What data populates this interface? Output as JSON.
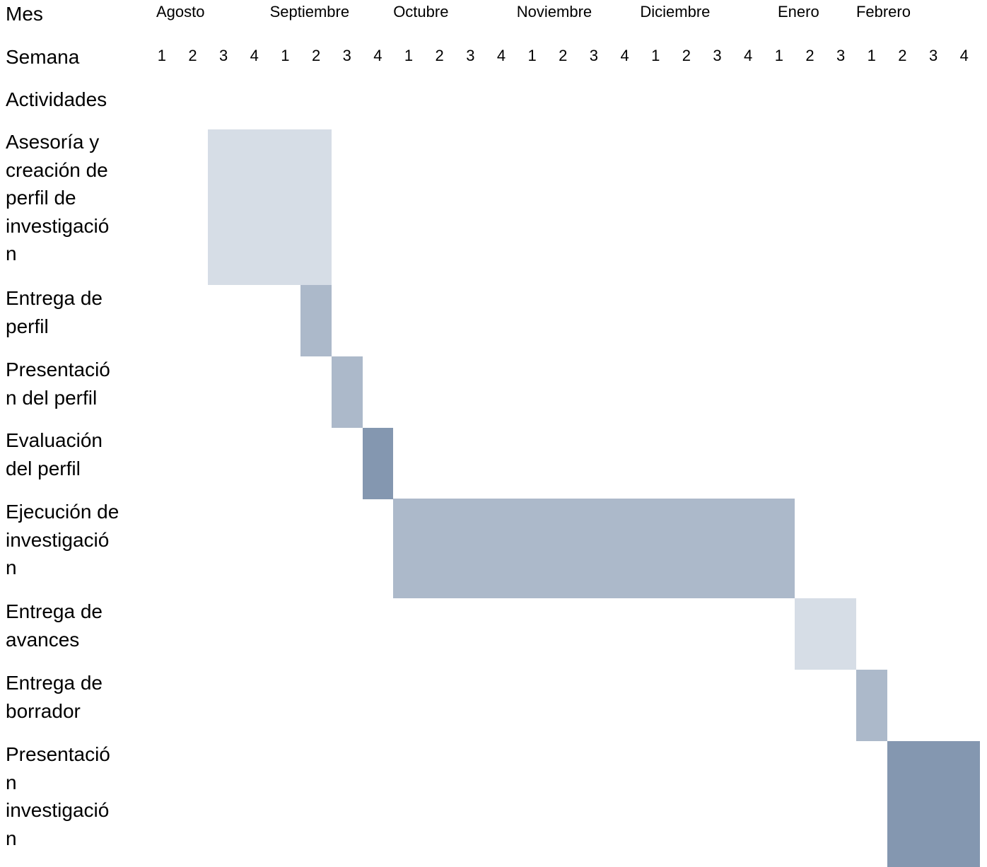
{
  "chart_data": {
    "type": "gantt",
    "row_labels": {
      "month": "Mes",
      "week": "Semana",
      "activities": "Actividades"
    },
    "months": [
      {
        "name": "Agosto",
        "weeks": [
          1,
          2,
          3,
          4
        ]
      },
      {
        "name": "Septiembre",
        "weeks": [
          1,
          2,
          3,
          4
        ]
      },
      {
        "name": "Octubre",
        "weeks": [
          1,
          2,
          3,
          4
        ]
      },
      {
        "name": "Noviembre",
        "weeks": [
          1,
          2,
          3,
          4
        ]
      },
      {
        "name": "Diciembre",
        "weeks": [
          1,
          2,
          3,
          4
        ]
      },
      {
        "name": "Enero",
        "weeks": [
          1,
          2,
          3
        ]
      },
      {
        "name": "Febrero",
        "weeks": [
          1,
          2,
          3,
          4
        ]
      }
    ],
    "tasks": [
      {
        "name": "Asesoría y\ncreación de\nperfil de\ninvestigació\nn",
        "start": "Agosto semana 3",
        "end": "Septiembre semana 2",
        "color": "#d6dde6"
      },
      {
        "name": "Entrega de\nperfil",
        "start": "Septiembre semana 2",
        "end": "Septiembre semana 2",
        "color": "#acb9ca"
      },
      {
        "name": "Presentació\nn del perfil",
        "start": "Septiembre semana 3",
        "end": "Septiembre semana 3",
        "color": "#acb9ca"
      },
      {
        "name": "Evaluación\ndel perfil",
        "start": "Septiembre semana 4",
        "end": "Septiembre semana 4",
        "color": "#8497b0"
      },
      {
        "name": "Ejecución de\ninvestigació\nn",
        "start": "Octubre semana 1",
        "end": "Enero semana 1",
        "color": "#acb9ca"
      },
      {
        "name": "Entrega de\navances",
        "start": "Enero semana 2",
        "end": "Enero semana 3",
        "color": "#d6dde6"
      },
      {
        "name": "Entrega de\nborrador",
        "start": "Febrero semana 1",
        "end": "Febrero semana 1",
        "color": "#acb9ca"
      },
      {
        "name": "Presentació\nn\ninvestigació\nn",
        "start": "Febrero semana 2",
        "end": "Febrero semana 4",
        "color": "#8497b0"
      }
    ]
  }
}
